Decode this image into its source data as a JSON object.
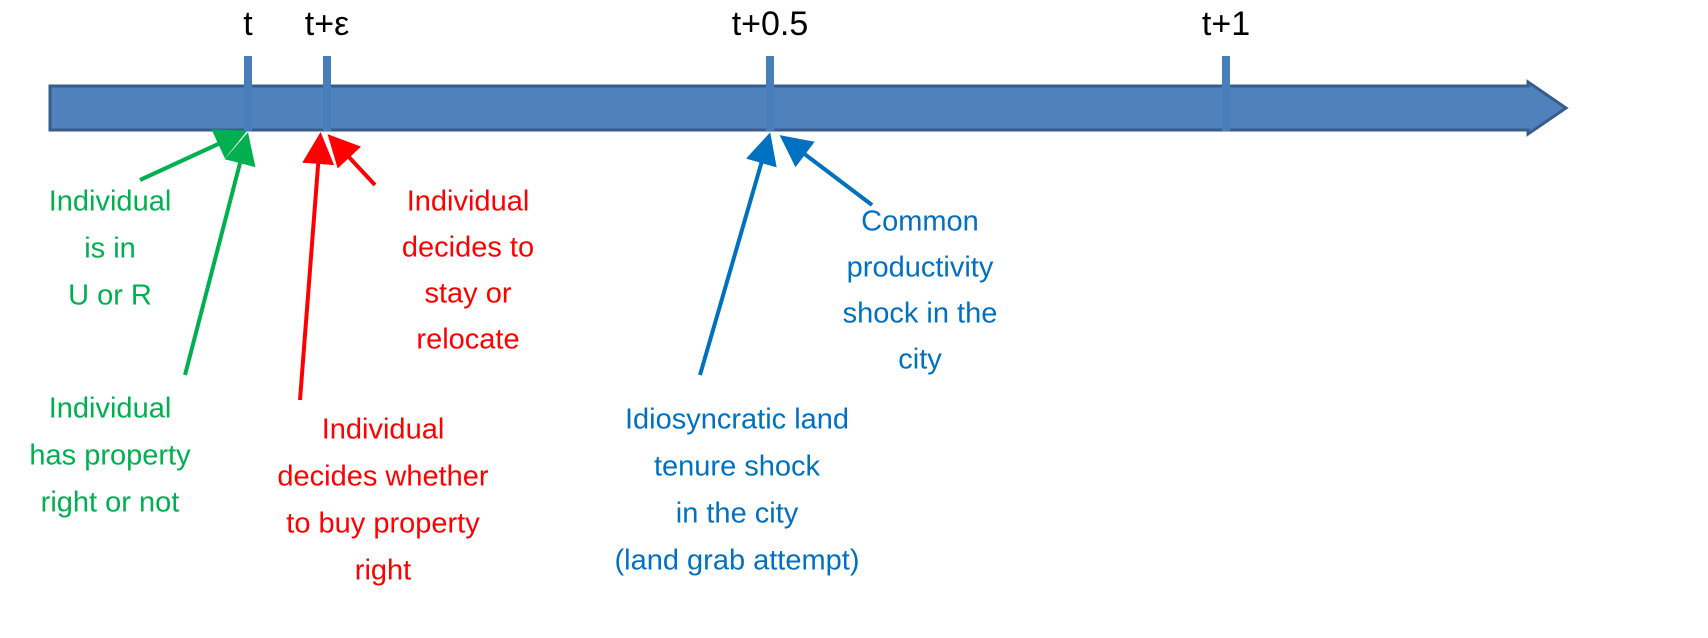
{
  "timeline": {
    "ticks": [
      {
        "label": "t"
      },
      {
        "label": "t+ε"
      },
      {
        "label": "t+0.5"
      },
      {
        "label": "t+1"
      }
    ]
  },
  "annotations": [
    {
      "lines": [
        "Individual",
        "is in",
        "U or R"
      ]
    },
    {
      "lines": [
        "Individual",
        "has property",
        "right or not"
      ]
    },
    {
      "lines": [
        "Individual",
        "decides to",
        "stay or",
        "relocate"
      ]
    },
    {
      "lines": [
        "Individual",
        "decides whether",
        "to buy property",
        "right"
      ]
    },
    {
      "lines": [
        "Idiosyncratic land",
        "tenure shock",
        "in the city",
        "(land grab attempt)"
      ]
    },
    {
      "lines": [
        "Common",
        "productivity",
        "shock in the",
        "city"
      ]
    }
  ]
}
